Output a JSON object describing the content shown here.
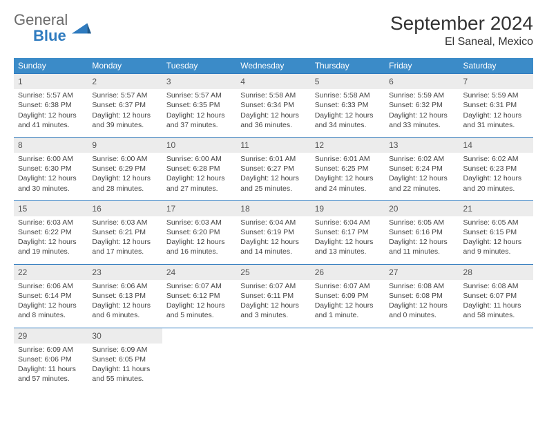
{
  "logo": {
    "word1": "General",
    "word2": "Blue"
  },
  "title": "September 2024",
  "location": "El Saneal, Mexico",
  "colors": {
    "headerBg": "#3b8bc8",
    "rowBorder": "#2f7bbf",
    "dayBg": "#ececec",
    "logoGray": "#6b6b6b",
    "logoBlue": "#2f7bbf"
  },
  "weekdays": [
    "Sunday",
    "Monday",
    "Tuesday",
    "Wednesday",
    "Thursday",
    "Friday",
    "Saturday"
  ],
  "weeks": [
    [
      {
        "n": "1",
        "sr": "5:57 AM",
        "ss": "6:38 PM",
        "dl": "12 hours and 41 minutes."
      },
      {
        "n": "2",
        "sr": "5:57 AM",
        "ss": "6:37 PM",
        "dl": "12 hours and 39 minutes."
      },
      {
        "n": "3",
        "sr": "5:57 AM",
        "ss": "6:35 PM",
        "dl": "12 hours and 37 minutes."
      },
      {
        "n": "4",
        "sr": "5:58 AM",
        "ss": "6:34 PM",
        "dl": "12 hours and 36 minutes."
      },
      {
        "n": "5",
        "sr": "5:58 AM",
        "ss": "6:33 PM",
        "dl": "12 hours and 34 minutes."
      },
      {
        "n": "6",
        "sr": "5:59 AM",
        "ss": "6:32 PM",
        "dl": "12 hours and 33 minutes."
      },
      {
        "n": "7",
        "sr": "5:59 AM",
        "ss": "6:31 PM",
        "dl": "12 hours and 31 minutes."
      }
    ],
    [
      {
        "n": "8",
        "sr": "6:00 AM",
        "ss": "6:30 PM",
        "dl": "12 hours and 30 minutes."
      },
      {
        "n": "9",
        "sr": "6:00 AM",
        "ss": "6:29 PM",
        "dl": "12 hours and 28 minutes."
      },
      {
        "n": "10",
        "sr": "6:00 AM",
        "ss": "6:28 PM",
        "dl": "12 hours and 27 minutes."
      },
      {
        "n": "11",
        "sr": "6:01 AM",
        "ss": "6:27 PM",
        "dl": "12 hours and 25 minutes."
      },
      {
        "n": "12",
        "sr": "6:01 AM",
        "ss": "6:25 PM",
        "dl": "12 hours and 24 minutes."
      },
      {
        "n": "13",
        "sr": "6:02 AM",
        "ss": "6:24 PM",
        "dl": "12 hours and 22 minutes."
      },
      {
        "n": "14",
        "sr": "6:02 AM",
        "ss": "6:23 PM",
        "dl": "12 hours and 20 minutes."
      }
    ],
    [
      {
        "n": "15",
        "sr": "6:03 AM",
        "ss": "6:22 PM",
        "dl": "12 hours and 19 minutes."
      },
      {
        "n": "16",
        "sr": "6:03 AM",
        "ss": "6:21 PM",
        "dl": "12 hours and 17 minutes."
      },
      {
        "n": "17",
        "sr": "6:03 AM",
        "ss": "6:20 PM",
        "dl": "12 hours and 16 minutes."
      },
      {
        "n": "18",
        "sr": "6:04 AM",
        "ss": "6:19 PM",
        "dl": "12 hours and 14 minutes."
      },
      {
        "n": "19",
        "sr": "6:04 AM",
        "ss": "6:17 PM",
        "dl": "12 hours and 13 minutes."
      },
      {
        "n": "20",
        "sr": "6:05 AM",
        "ss": "6:16 PM",
        "dl": "12 hours and 11 minutes."
      },
      {
        "n": "21",
        "sr": "6:05 AM",
        "ss": "6:15 PM",
        "dl": "12 hours and 9 minutes."
      }
    ],
    [
      {
        "n": "22",
        "sr": "6:06 AM",
        "ss": "6:14 PM",
        "dl": "12 hours and 8 minutes."
      },
      {
        "n": "23",
        "sr": "6:06 AM",
        "ss": "6:13 PM",
        "dl": "12 hours and 6 minutes."
      },
      {
        "n": "24",
        "sr": "6:07 AM",
        "ss": "6:12 PM",
        "dl": "12 hours and 5 minutes."
      },
      {
        "n": "25",
        "sr": "6:07 AM",
        "ss": "6:11 PM",
        "dl": "12 hours and 3 minutes."
      },
      {
        "n": "26",
        "sr": "6:07 AM",
        "ss": "6:09 PM",
        "dl": "12 hours and 1 minute."
      },
      {
        "n": "27",
        "sr": "6:08 AM",
        "ss": "6:08 PM",
        "dl": "12 hours and 0 minutes."
      },
      {
        "n": "28",
        "sr": "6:08 AM",
        "ss": "6:07 PM",
        "dl": "11 hours and 58 minutes."
      }
    ],
    [
      {
        "n": "29",
        "sr": "6:09 AM",
        "ss": "6:06 PM",
        "dl": "11 hours and 57 minutes."
      },
      {
        "n": "30",
        "sr": "6:09 AM",
        "ss": "6:05 PM",
        "dl": "11 hours and 55 minutes."
      },
      null,
      null,
      null,
      null,
      null
    ]
  ],
  "labels": {
    "sunrise": "Sunrise: ",
    "sunset": "Sunset: ",
    "daylight": "Daylight: "
  }
}
